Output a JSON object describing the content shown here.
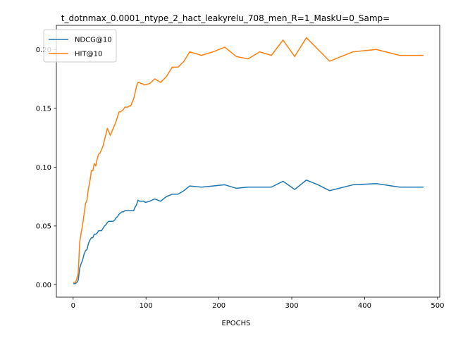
{
  "chart_data": {
    "type": "line",
    "title": "t_dotnmax_0.0001_ntype_2_hact_leakyrelu_708_men_R=1_MaskU=0_Samp=",
    "xlabel": "EPOCHS",
    "ylabel": "",
    "xlim": [
      -23.0,
      503.0
    ],
    "ylim": [
      -0.0105,
      0.2205
    ],
    "xticks": [
      0,
      100,
      200,
      300,
      400,
      500
    ],
    "xtick_labels": [
      "0",
      "100",
      "200",
      "300",
      "400",
      "500"
    ],
    "yticks": [
      0.0,
      0.05,
      0.1,
      0.15,
      0.2
    ],
    "ytick_labels": [
      "0.00",
      "0.05",
      "0.10",
      "0.15",
      "0.20"
    ],
    "grid": false,
    "legend_position": "top-left",
    "series": [
      {
        "name": "NDCG@10",
        "color": "#1f77b4",
        "x": [
          1,
          3,
          5,
          7,
          9,
          11,
          13,
          15,
          17,
          19,
          21,
          23,
          25,
          27,
          29,
          31,
          33,
          35,
          37,
          39,
          41,
          43,
          45,
          47,
          49,
          51,
          53,
          55,
          57,
          59,
          61,
          63,
          65,
          67,
          69,
          71,
          73,
          75,
          77,
          79,
          81,
          83,
          85,
          87,
          89,
          91,
          93,
          95,
          97,
          99,
          105,
          112,
          120,
          128,
          136,
          144,
          152,
          160,
          176,
          192,
          208,
          224,
          240,
          256,
          272,
          288,
          304,
          320,
          336,
          352,
          384,
          416,
          448,
          480
        ],
        "y": [
          0.001,
          0.001,
          0.002,
          0.004,
          0.014,
          0.018,
          0.021,
          0.026,
          0.029,
          0.03,
          0.035,
          0.038,
          0.04,
          0.04,
          0.043,
          0.043,
          0.044,
          0.046,
          0.046,
          0.046,
          0.048,
          0.05,
          0.051,
          0.053,
          0.054,
          0.054,
          0.054,
          0.054,
          0.055,
          0.057,
          0.058,
          0.06,
          0.061,
          0.062,
          0.062,
          0.063,
          0.063,
          0.063,
          0.063,
          0.063,
          0.063,
          0.063,
          0.066,
          0.068,
          0.072,
          0.071,
          0.071,
          0.071,
          0.071,
          0.07,
          0.071,
          0.073,
          0.071,
          0.075,
          0.077,
          0.077,
          0.08,
          0.084,
          0.083,
          0.084,
          0.085,
          0.082,
          0.083,
          0.083,
          0.083,
          0.088,
          0.081,
          0.089,
          0.085,
          0.08,
          0.085,
          0.086,
          0.083,
          0.083
        ]
      },
      {
        "name": "HIT@10",
        "color": "#ff7f0e",
        "x": [
          1,
          3,
          5,
          7,
          9,
          11,
          13,
          15,
          17,
          19,
          21,
          23,
          25,
          27,
          29,
          31,
          33,
          35,
          37,
          39,
          41,
          43,
          45,
          47,
          49,
          51,
          53,
          55,
          57,
          59,
          61,
          63,
          65,
          67,
          69,
          71,
          73,
          75,
          77,
          79,
          81,
          83,
          85,
          87,
          89,
          91,
          93,
          95,
          97,
          99,
          105,
          112,
          120,
          128,
          136,
          144,
          152,
          160,
          176,
          192,
          208,
          224,
          240,
          256,
          272,
          288,
          304,
          320,
          336,
          352,
          384,
          416,
          448,
          480
        ],
        "y": [
          0.002,
          0.002,
          0.005,
          0.01,
          0.036,
          0.044,
          0.051,
          0.06,
          0.069,
          0.072,
          0.082,
          0.088,
          0.097,
          0.097,
          0.103,
          0.101,
          0.107,
          0.111,
          0.112,
          0.115,
          0.118,
          0.123,
          0.128,
          0.133,
          0.13,
          0.127,
          0.13,
          0.133,
          0.136,
          0.139,
          0.143,
          0.147,
          0.147,
          0.148,
          0.149,
          0.151,
          0.151,
          0.151,
          0.152,
          0.152,
          0.155,
          0.158,
          0.163,
          0.169,
          0.172,
          0.172,
          0.171,
          0.171,
          0.17,
          0.17,
          0.171,
          0.175,
          0.172,
          0.177,
          0.185,
          0.185,
          0.19,
          0.198,
          0.195,
          0.198,
          0.202,
          0.194,
          0.192,
          0.198,
          0.195,
          0.208,
          0.194,
          0.21,
          0.2,
          0.19,
          0.198,
          0.2,
          0.195,
          0.195
        ]
      }
    ]
  }
}
